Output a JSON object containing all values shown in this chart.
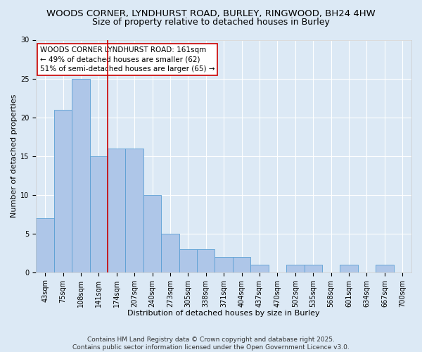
{
  "title_line1": "WOODS CORNER, LYNDHURST ROAD, BURLEY, RINGWOOD, BH24 4HW",
  "title_line2": "Size of property relative to detached houses in Burley",
  "xlabel": "Distribution of detached houses by size in Burley",
  "ylabel": "Number of detached properties",
  "categories": [
    "43sqm",
    "75sqm",
    "108sqm",
    "141sqm",
    "174sqm",
    "207sqm",
    "240sqm",
    "273sqm",
    "305sqm",
    "338sqm",
    "371sqm",
    "404sqm",
    "437sqm",
    "470sqm",
    "502sqm",
    "535sqm",
    "568sqm",
    "601sqm",
    "634sqm",
    "667sqm",
    "700sqm"
  ],
  "values": [
    7,
    21,
    25,
    15,
    16,
    16,
    10,
    5,
    3,
    3,
    2,
    2,
    1,
    0,
    1,
    1,
    0,
    1,
    0,
    1,
    0
  ],
  "bar_color": "#aec6e8",
  "bar_edge_color": "#5a9fd4",
  "vline_x": 3.5,
  "vline_color": "#cc0000",
  "annotation_text": "WOODS CORNER LYNDHURST ROAD: 161sqm\n← 49% of detached houses are smaller (62)\n51% of semi-detached houses are larger (65) →",
  "annotation_box_color": "#ffffff",
  "annotation_box_edge_color": "#cc0000",
  "ylim": [
    0,
    30
  ],
  "yticks": [
    0,
    5,
    10,
    15,
    20,
    25,
    30
  ],
  "bg_color": "#dce9f5",
  "footer_text": "Contains HM Land Registry data © Crown copyright and database right 2025.\nContains public sector information licensed under the Open Government Licence v3.0.",
  "title_fontsize": 9.5,
  "subtitle_fontsize": 9,
  "annotation_fontsize": 7.5,
  "footer_fontsize": 6.5,
  "axis_label_fontsize": 8,
  "tick_fontsize": 7
}
